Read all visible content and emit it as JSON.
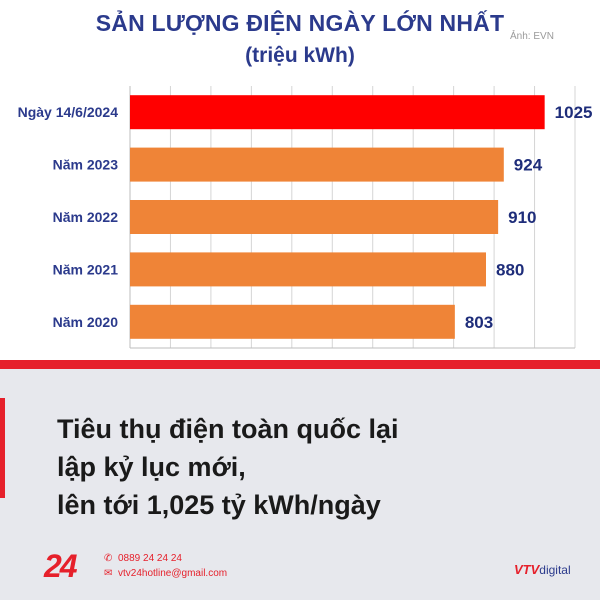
{
  "credit": "Ảnh: EVN",
  "chart_data": {
    "type": "bar",
    "orientation": "horizontal",
    "title": "SẢN LƯỢNG ĐIỆN NGÀY LỚN NHẤT",
    "subtitle": "(triệu kWh)",
    "categories": [
      "Ngày 14/6/2024",
      "Năm 2023",
      "Năm 2022",
      "Năm 2021",
      "Năm 2020"
    ],
    "values": [
      1025,
      924,
      910,
      880,
      803
    ],
    "value_labels": [
      "1025",
      "924",
      "910",
      "880",
      "803"
    ],
    "xlim": [
      0,
      1100
    ],
    "grid": true,
    "legend": "none",
    "colors": {
      "highlight": "#ff0000",
      "bar": "#ef8437",
      "text": "#2b3a8c",
      "grid": "#d5d5d5"
    }
  },
  "caption": {
    "lines": [
      "Tiêu thụ điện toàn quốc lại",
      "lập kỷ lục mới,",
      "lên tới 1,025 tỷ kWh/ngày"
    ]
  },
  "footer": {
    "logo": "24",
    "phone_icon": "phone-icon",
    "phone": "0889 24 24 24",
    "email_icon": "mail-icon",
    "email": "vtv24hotline@gmail.com",
    "brand": "VTV",
    "brand_suffix": "digital"
  }
}
